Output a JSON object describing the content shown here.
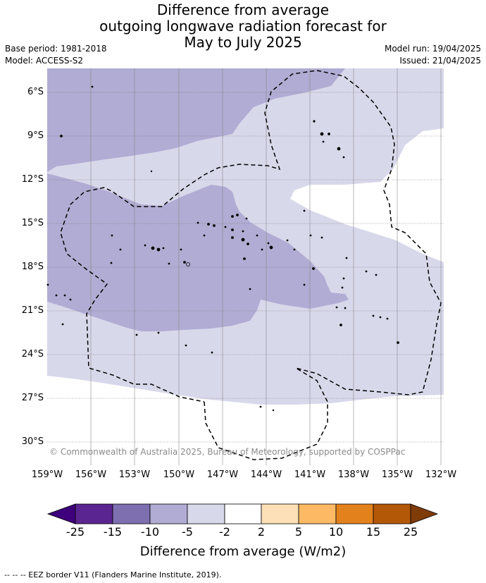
{
  "header": {
    "title_line1": "Difference from average",
    "title_line2": "outgoing longwave radiation forecast for",
    "title_line3": "May to July 2025",
    "base_period": "Base period: 1981-2018",
    "model": "Model: ACCESS-S2",
    "model_run": "Model run: 19/04/2025",
    "issued": "Issued: 21/04/2025"
  },
  "map": {
    "copyright": "© Commonwealth of Australia 2025, Bureau of Meteorology, supported by COSPPac",
    "lon_labels": [
      "159°W",
      "156°W",
      "153°W",
      "150°W",
      "147°W",
      "144°W",
      "141°W",
      "138°W",
      "135°W",
      "132°W"
    ],
    "lat_labels": [
      "6°S",
      "9°S",
      "12°S",
      "15°S",
      "18°S",
      "21°S",
      "24°S",
      "27°S",
      "30°S"
    ],
    "colors": {
      "band_-5_-2": "#d8d8eb",
      "band_-10_-5": "#b1acd3",
      "land": "#000000",
      "eez_border": "#000000"
    }
  },
  "colorbar": {
    "title": "Difference from average (W/m2)",
    "tick_labels": [
      "-25",
      "-15",
      "-10",
      "-5",
      "-2",
      "2",
      "5",
      "10",
      "15",
      "25"
    ],
    "colors": [
      "#3f007d",
      "#5a2590",
      "#7e70b0",
      "#b1acd3",
      "#d8d8eb",
      "#ffffff",
      "#fde0b7",
      "#fdb964",
      "#e3811d",
      "#b35807",
      "#7f3b08"
    ]
  },
  "footer": {
    "legend": "-- -- -- EEZ border V11 (Flanders Marine Institute, 2019)."
  }
}
